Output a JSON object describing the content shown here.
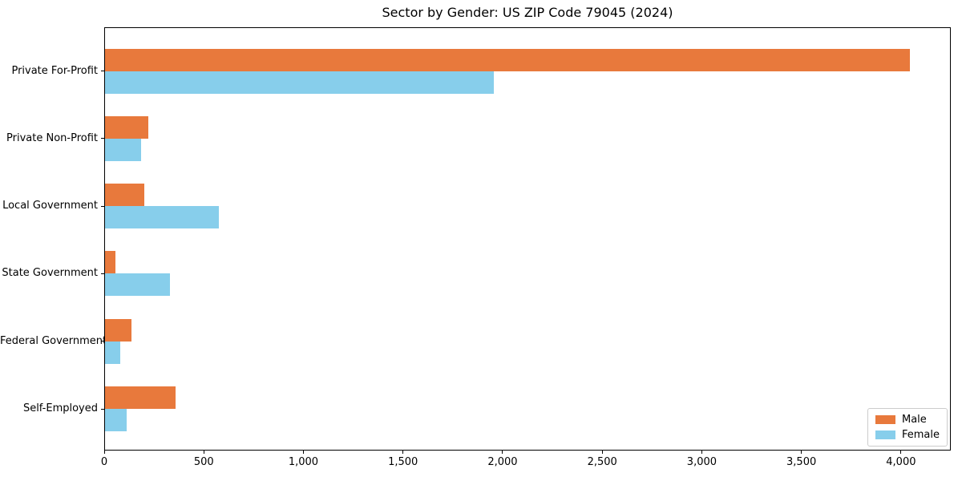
{
  "chart_data": {
    "type": "bar",
    "orientation": "horizontal",
    "title": "Sector by Gender: US ZIP Code 79045 (2024)",
    "categories": [
      "Private For-Profit",
      "Private Non-Profit",
      "Local Government",
      "State Government",
      "Federal Government",
      "Self-Employed"
    ],
    "series": [
      {
        "name": "Male",
        "color": "#e8793c",
        "values": [
          4045,
          220,
          200,
          55,
          137,
          358
        ]
      },
      {
        "name": "Female",
        "color": "#87ceeb",
        "values": [
          1955,
          185,
          575,
          330,
          80,
          114
        ]
      }
    ],
    "xlabel": "",
    "ylabel": "",
    "xlim": [
      0,
      4250
    ],
    "xticks": [
      0,
      500,
      1000,
      1500,
      2000,
      2500,
      3000,
      3500,
      4000
    ],
    "xtick_labels": [
      "0",
      "500",
      "1,000",
      "1,500",
      "2,000",
      "2,500",
      "3,000",
      "3,500",
      "4,000"
    ],
    "grid": false,
    "legend": {
      "position": "lower right"
    },
    "colors": {
      "male": "#e8793c",
      "female": "#87ceeb",
      "spine": "#000000",
      "legend_border": "#cccccc"
    }
  }
}
